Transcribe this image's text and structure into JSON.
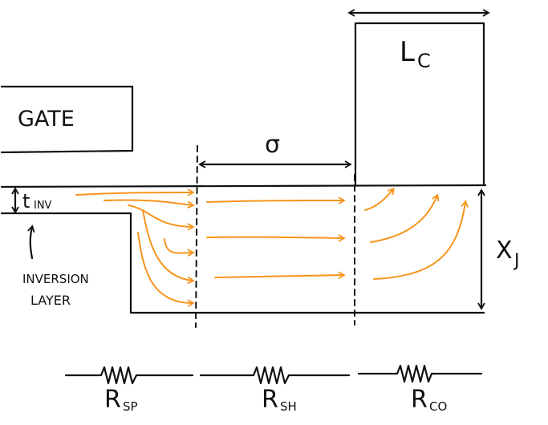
{
  "labels": {
    "gate": "GATE",
    "t_inv": "t",
    "t_inv_sub": "INV",
    "sigma": "σ",
    "lc": "L",
    "lc_sub": "C",
    "xj": "X",
    "xj_sub": "J",
    "inversion_line1": "INVERSION",
    "inversion_line2": "LAYER",
    "rsp": "R",
    "rsp_sub": "SP",
    "rsh": "R",
    "rsh_sub": "SH",
    "rco": "R",
    "rco_sub": "CO"
  },
  "colors": {
    "ink": "#111111",
    "current": "#f7941d"
  }
}
